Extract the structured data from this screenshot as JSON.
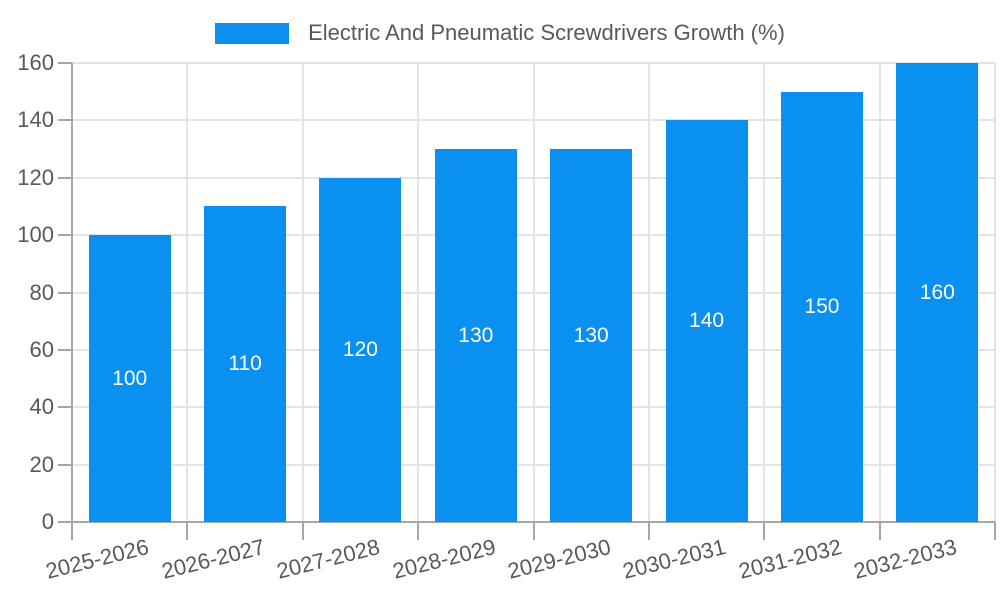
{
  "chart_data": {
    "type": "bar",
    "title": "Electric And Pneumatic Screwdrivers Growth (%)",
    "categories": [
      "2025-2026",
      "2026-2027",
      "2027-2028",
      "2028-2029",
      "2029-2030",
      "2030-2031",
      "2031-2032",
      "2032-2033"
    ],
    "values": [
      100,
      110,
      120,
      130,
      130,
      140,
      150,
      160
    ],
    "bar_labels": [
      "100",
      "110",
      "120",
      "130",
      "130",
      "140",
      "150",
      "160"
    ],
    "yticks": [
      0,
      20,
      40,
      60,
      80,
      100,
      120,
      140,
      160
    ],
    "ylim": [
      0,
      160
    ],
    "xlabel": "",
    "ylabel": "",
    "grid": true,
    "legend_position": "top-center",
    "x_tick_label_rotation_deg": -14,
    "colors": {
      "bar": "#0A90F0",
      "axis": "#A6A6A6",
      "grid": "#E4E4E4",
      "text": "#595959",
      "bar_label": "#FFFFFF",
      "background": "#FFFFFF"
    }
  }
}
